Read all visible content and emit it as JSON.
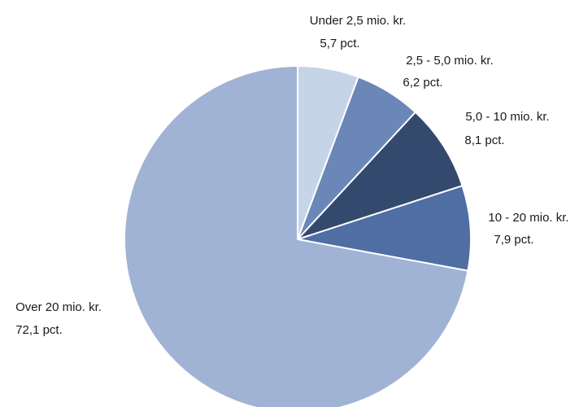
{
  "chart_data": {
    "type": "pie",
    "start_angle_deg": 0,
    "direction": "clockwise",
    "slices": [
      {
        "name": "Under 2,5 mio. kr.",
        "value": 5.7,
        "value_label": "5,7 pct.",
        "color": "#c6d4e8"
      },
      {
        "name": "2,5 - 5,0 mio. kr.",
        "value": 6.2,
        "value_label": "6,2 pct.",
        "color": "#6b87b8"
      },
      {
        "name": "5,0 - 10 mio. kr.",
        "value": 8.1,
        "value_label": "8,1 pct.",
        "color": "#34496e"
      },
      {
        "name": "10 - 20 mio. kr.",
        "value": 7.9,
        "value_label": "7,9 pct.",
        "color": "#4f6ea3"
      },
      {
        "name": "Over 20 mio. kr.",
        "value": 72.1,
        "value_label": "72,1 pct.",
        "color": "#a0b3d4"
      }
    ]
  }
}
